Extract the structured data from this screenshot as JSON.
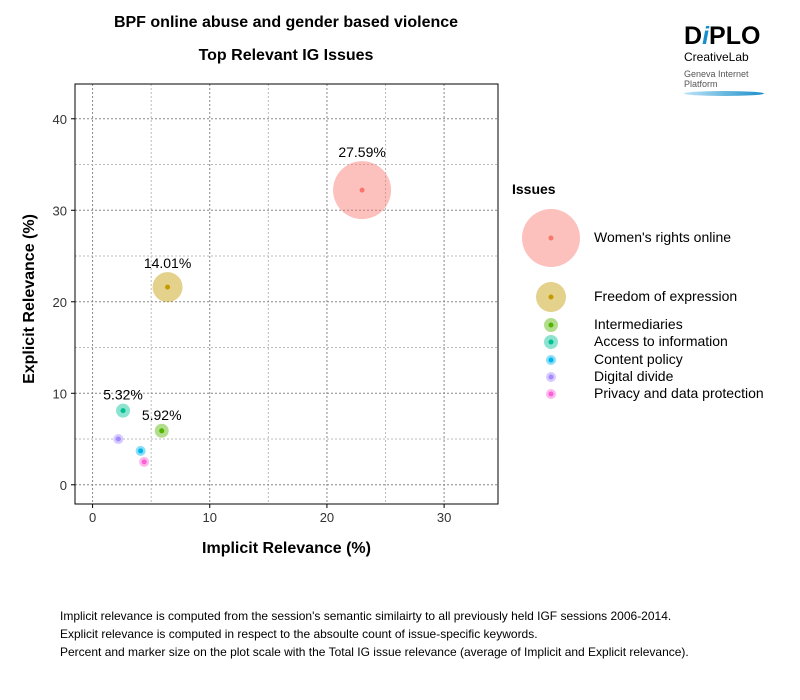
{
  "logo": {
    "brand": "DiPLO",
    "sub": "CreativeLab",
    "platform": "Geneva Internet Platform"
  },
  "notes": [
    "Implicit relevance is computed from the session's semantic similairty to all previously held IGF sessions 2006-2014.",
    "Explicit relevance is computed in respect to the absoulte count of issue-specific keywords.",
    "Percent and marker size on the plot scale with the Total IG issue relevance (average of Implicit and Explicit relevance)."
  ],
  "chart_data": {
    "type": "scatter",
    "title": "BPF online abuse and gender based violence",
    "subtitle": "Top Relevant IG Issues",
    "xlabel": "Implicit Relevance (%)",
    "ylabel": "Explicit Relevance (%)",
    "xlim": [
      -1.5,
      34.6
    ],
    "ylim": [
      -2.1,
      43.8
    ],
    "xticks": [
      0,
      10,
      20,
      30
    ],
    "yticks": [
      0,
      10,
      20,
      30,
      40
    ],
    "grid": true,
    "legend_title": "Issues",
    "legend_position": "right",
    "series": [
      {
        "name": "Women's rights online",
        "x": 23.0,
        "y": 32.2,
        "label": "27.59%",
        "color": "#f8766d"
      },
      {
        "name": "Freedom of expression",
        "x": 6.4,
        "y": 21.6,
        "label": "14.01%",
        "color": "#c49a00"
      },
      {
        "name": "Intermediaries",
        "x": 5.9,
        "y": 5.9,
        "label": "5.92%",
        "color": "#53b400"
      },
      {
        "name": "Access to information",
        "x": 2.6,
        "y": 8.1,
        "label": "5.32%",
        "color": "#00c094"
      },
      {
        "name": "Content policy",
        "x": 4.1,
        "y": 3.7,
        "label": "",
        "color": "#00b6eb"
      },
      {
        "name": "Digital divide",
        "x": 2.2,
        "y": 5.0,
        "label": "",
        "color": "#a58aff"
      },
      {
        "name": "Privacy and data protection",
        "x": 4.4,
        "y": 2.5,
        "label": "",
        "color": "#fb61d7"
      }
    ]
  }
}
